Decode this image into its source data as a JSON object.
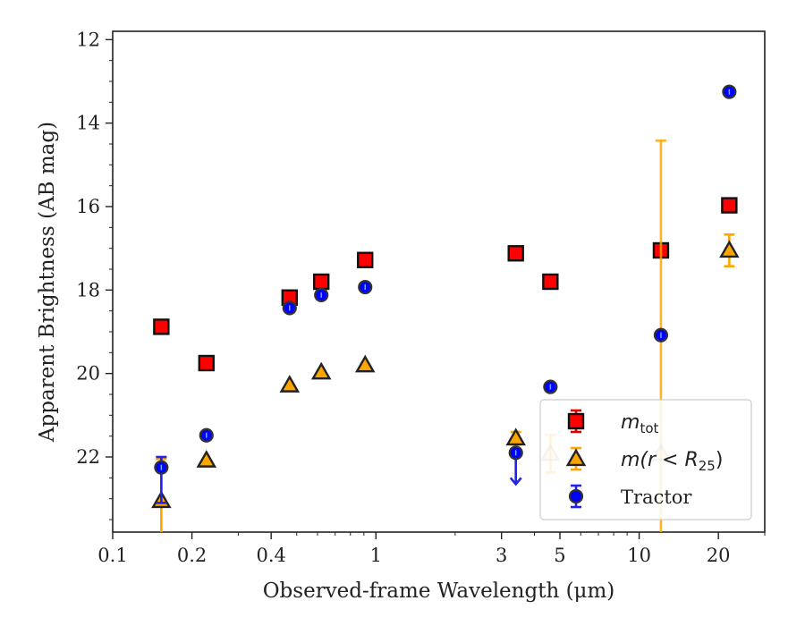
{
  "chart_data": {
    "type": "scatter",
    "title": "",
    "xlabel": "Observed-frame Wavelength (μm)",
    "ylabel": "Apparent Brightness (AB mag)",
    "xscale": "log",
    "xlim": [
      0.1,
      30
    ],
    "ylim": [
      23.8,
      11.8
    ],
    "y_inverted": true,
    "x_ticks": [
      {
        "value": 0.1,
        "label": "0.1"
      },
      {
        "value": 0.2,
        "label": "0.2"
      },
      {
        "value": 0.4,
        "label": "0.4"
      },
      {
        "value": 1,
        "label": "1"
      },
      {
        "value": 3,
        "label": "3"
      },
      {
        "value": 5,
        "label": "5"
      },
      {
        "value": 10,
        "label": "10"
      },
      {
        "value": 20,
        "label": "20"
      }
    ],
    "y_ticks": [
      {
        "value": 12,
        "label": "12"
      },
      {
        "value": 14,
        "label": "14"
      },
      {
        "value": 16,
        "label": "16"
      },
      {
        "value": 18,
        "label": "18"
      },
      {
        "value": 20,
        "label": "20"
      },
      {
        "value": 22,
        "label": "22"
      }
    ],
    "legend_position": "lower-right",
    "grid": false,
    "series": [
      {
        "name": "m_tot",
        "legend_main": "m",
        "legend_sub": "tot",
        "marker": "square",
        "color": "#ff0000",
        "edge": "#111111",
        "errcolor": "#dd0000",
        "points": [
          {
            "x": 0.153,
            "y": 18.88,
            "err": 0.05
          },
          {
            "x": 0.227,
            "y": 19.75,
            "err": 0.05
          },
          {
            "x": 0.47,
            "y": 18.18,
            "err": 0.05
          },
          {
            "x": 0.62,
            "y": 17.8,
            "err": 0.05
          },
          {
            "x": 0.91,
            "y": 17.28,
            "err": 0.05
          },
          {
            "x": 3.4,
            "y": 17.12,
            "err": 0.05
          },
          {
            "x": 4.6,
            "y": 17.8,
            "err": 0.05
          },
          {
            "x": 12.1,
            "y": 17.05,
            "err": 0.05
          },
          {
            "x": 22.0,
            "y": 15.97,
            "err": 0.05
          }
        ]
      },
      {
        "name": "m(r < R_25)",
        "legend_main": "m(r < R",
        "legend_sub": "25",
        "legend_close": ")",
        "marker": "triangle",
        "color": "#ffa500",
        "edge": "#222222",
        "errcolor": "#ffa500",
        "points": [
          {
            "x": 0.153,
            "y": 23.05,
            "err_low": 1.0,
            "err_high": 1.05
          },
          {
            "x": 0.227,
            "y": 22.08,
            "err": 0.05
          },
          {
            "x": 0.47,
            "y": 20.28,
            "err": 0.05
          },
          {
            "x": 0.62,
            "y": 19.97,
            "err": 0.05
          },
          {
            "x": 0.91,
            "y": 19.8,
            "err": 0.05
          },
          {
            "x": 3.4,
            "y": 21.55,
            "err": 0.15
          },
          {
            "x": 4.6,
            "y": 21.92,
            "err": 0.45,
            "faded": true
          },
          {
            "x": 12.1,
            "y": 21.92,
            "err_low": 7.5,
            "err_high": 2.0,
            "faded": true
          },
          {
            "x": 22.0,
            "y": 17.05,
            "err": 0.38
          }
        ]
      },
      {
        "name": "Tractor",
        "legend_main": "Tractor",
        "marker": "circle",
        "color": "#0000ff",
        "edge": "#333333",
        "errcolor": "#2222ee",
        "points": [
          {
            "x": 0.153,
            "y": 22.25,
            "err_low": 0.25,
            "err_high": 0.85
          },
          {
            "x": 0.227,
            "y": 21.48,
            "err": 0.05
          },
          {
            "x": 0.47,
            "y": 18.43,
            "err": 0.05
          },
          {
            "x": 0.62,
            "y": 18.12,
            "err": 0.05
          },
          {
            "x": 0.91,
            "y": 17.93,
            "err": 0.05
          },
          {
            "x": 3.4,
            "y": 21.9,
            "upper_limit": true
          },
          {
            "x": 4.6,
            "y": 20.32,
            "err": 0.05
          },
          {
            "x": 12.1,
            "y": 19.08,
            "err": 0.05
          },
          {
            "x": 22.0,
            "y": 13.25,
            "err": 0.05
          }
        ]
      }
    ]
  }
}
